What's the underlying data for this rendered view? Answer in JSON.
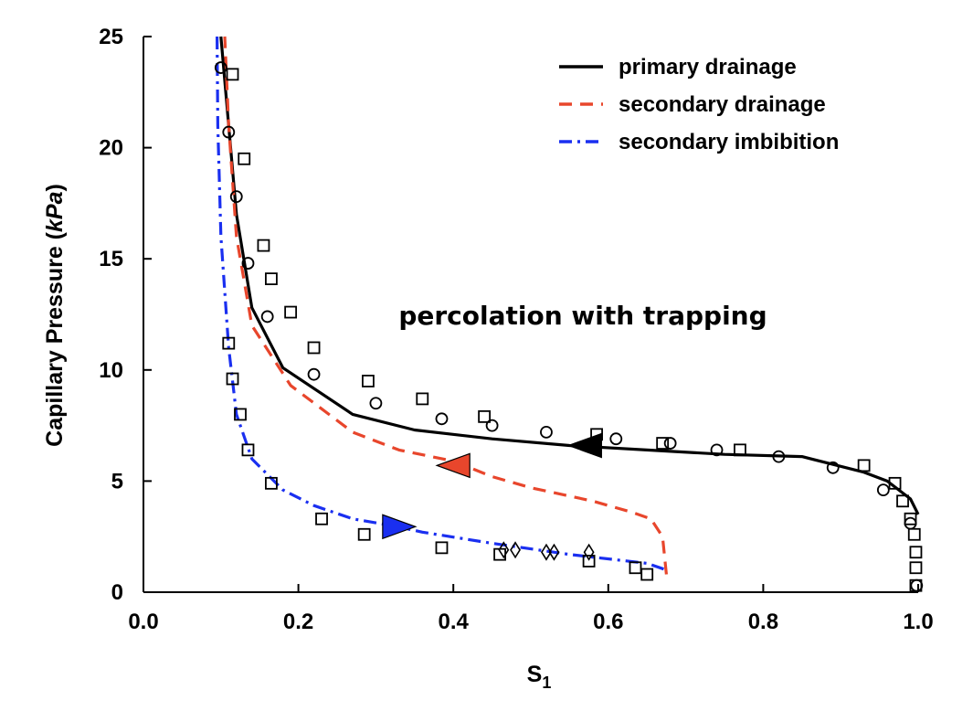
{
  "chart_data": {
    "type": "line",
    "xlabel": "S",
    "xlabel_sub": "1",
    "ylabel_prefix": "Capillary Pressure (",
    "ylabel_unit": "kPa",
    "ylabel_suffix": ")",
    "xlim": [
      0.0,
      1.0
    ],
    "ylim": [
      0,
      25
    ],
    "xticks": [
      "0.0",
      "0.2",
      "0.4",
      "0.6",
      "0.8",
      "1.0"
    ],
    "yticks": [
      "0",
      "5",
      "10",
      "15",
      "20",
      "25"
    ],
    "grid": false,
    "legend_position": "top-right",
    "annotation": "percolation with trapping",
    "series": [
      {
        "name": "primary drainage",
        "style": "solid",
        "color": "#000000",
        "x": [
          1.0,
          0.99,
          0.96,
          0.93,
          0.85,
          0.75,
          0.65,
          0.55,
          0.45,
          0.35,
          0.27,
          0.18,
          0.14,
          0.12,
          0.11,
          0.1
        ],
        "y": [
          3.5,
          4.2,
          5.0,
          5.4,
          6.1,
          6.2,
          6.4,
          6.6,
          6.9,
          7.3,
          8.0,
          10.1,
          12.8,
          17.0,
          21.0,
          25.0
        ],
        "arrow": {
          "x": 0.57,
          "y": 6.6,
          "direction": "left"
        }
      },
      {
        "name": "secondary drainage",
        "style": "dashed",
        "color": "#e8462c",
        "x": [
          0.675,
          0.67,
          0.655,
          0.63,
          0.58,
          0.5,
          0.45,
          0.4,
          0.33,
          0.27,
          0.19,
          0.14,
          0.12,
          0.11,
          0.105
        ],
        "y": [
          0.8,
          2.5,
          3.3,
          3.6,
          4.1,
          4.7,
          5.2,
          5.9,
          6.4,
          7.2,
          9.3,
          12.0,
          16.0,
          21.0,
          25.0
        ],
        "arrow": {
          "x": 0.4,
          "y": 5.7,
          "direction": "left"
        }
      },
      {
        "name": "secondary imbibition",
        "style": "dashdot",
        "color": "#1a2ff0",
        "x": [
          0.095,
          0.096,
          0.1,
          0.11,
          0.12,
          0.14,
          0.18,
          0.22,
          0.27,
          0.32,
          0.36,
          0.45,
          0.55,
          0.65,
          0.675
        ],
        "y": [
          25.0,
          21.0,
          16.0,
          11.0,
          8.0,
          6.0,
          4.6,
          3.9,
          3.3,
          3.0,
          2.7,
          2.2,
          1.7,
          1.3,
          1.0
        ],
        "arrow": {
          "x": 0.33,
          "y": 2.95,
          "direction": "right"
        }
      }
    ],
    "markers": {
      "circles": [
        [
          0.1,
          23.6
        ],
        [
          0.11,
          20.7
        ],
        [
          0.12,
          17.8
        ],
        [
          0.135,
          14.8
        ],
        [
          0.16,
          12.4
        ],
        [
          0.22,
          9.8
        ],
        [
          0.3,
          8.5
        ],
        [
          0.385,
          7.8
        ],
        [
          0.45,
          7.5
        ],
        [
          0.52,
          7.2
        ],
        [
          0.61,
          6.9
        ],
        [
          0.68,
          6.7
        ],
        [
          0.74,
          6.4
        ],
        [
          0.82,
          6.1
        ],
        [
          0.89,
          5.6
        ],
        [
          0.955,
          4.6
        ],
        [
          0.99,
          3.1
        ],
        [
          0.998,
          0.3
        ]
      ],
      "squares": [
        [
          0.115,
          23.3
        ],
        [
          0.13,
          19.5
        ],
        [
          0.155,
          15.6
        ],
        [
          0.165,
          14.1
        ],
        [
          0.19,
          12.6
        ],
        [
          0.22,
          11.0
        ],
        [
          0.29,
          9.5
        ],
        [
          0.36,
          8.7
        ],
        [
          0.44,
          7.9
        ],
        [
          0.585,
          7.1
        ],
        [
          0.67,
          6.7
        ],
        [
          0.77,
          6.4
        ],
        [
          0.93,
          5.7
        ],
        [
          0.97,
          4.9
        ],
        [
          0.98,
          4.1
        ],
        [
          0.99,
          3.3
        ],
        [
          0.995,
          2.6
        ],
        [
          0.997,
          1.8
        ],
        [
          0.997,
          1.1
        ],
        [
          0.997,
          0.3
        ],
        [
          0.11,
          11.2
        ],
        [
          0.115,
          9.6
        ],
        [
          0.125,
          8.0
        ],
        [
          0.135,
          6.4
        ],
        [
          0.165,
          4.9
        ],
        [
          0.23,
          3.3
        ],
        [
          0.285,
          2.6
        ],
        [
          0.385,
          2.0
        ],
        [
          0.46,
          1.7
        ],
        [
          0.575,
          1.4
        ],
        [
          0.635,
          1.1
        ],
        [
          0.65,
          0.8
        ]
      ],
      "diamonds": [
        [
          0.465,
          1.9
        ],
        [
          0.48,
          1.9
        ],
        [
          0.52,
          1.8
        ],
        [
          0.53,
          1.8
        ],
        [
          0.575,
          1.8
        ]
      ]
    }
  }
}
